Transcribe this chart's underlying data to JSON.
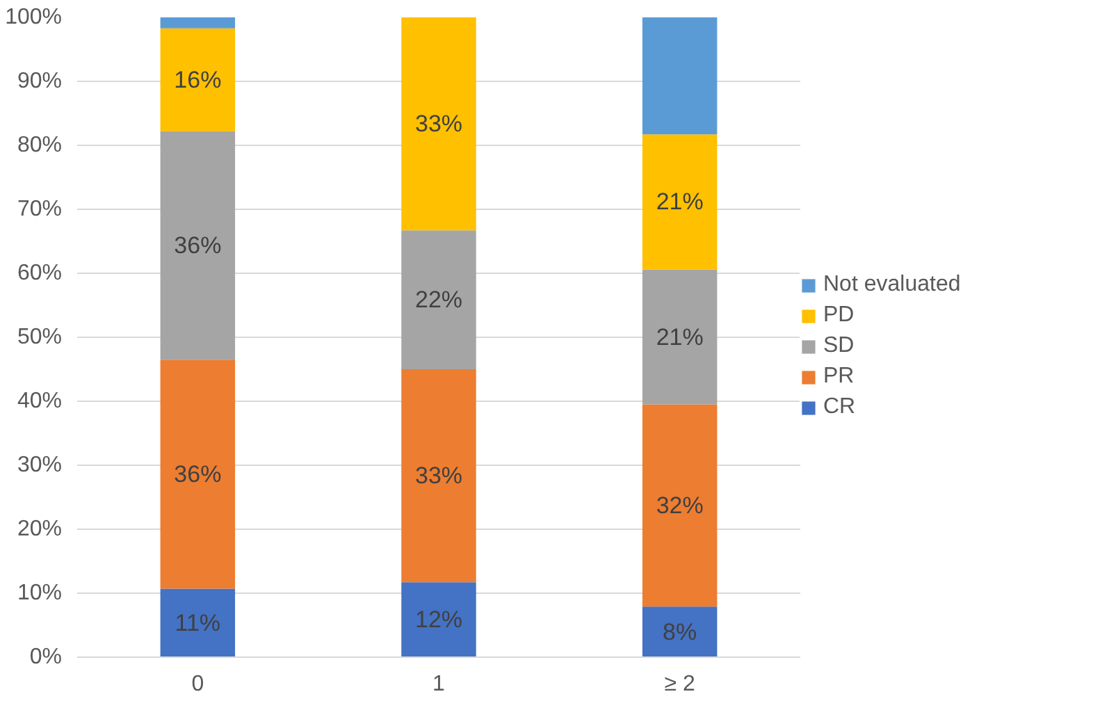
{
  "chart_data": {
    "type": "bar",
    "stacked": true,
    "categories": [
      "0",
      "1",
      "≥ 2"
    ],
    "series": [
      {
        "name": "CR",
        "color": "#4472c4",
        "values": [
          10.7,
          11.7,
          7.9
        ],
        "value_labels": [
          "11%",
          "12%",
          "8%"
        ]
      },
      {
        "name": "PR",
        "color": "#ed7d31",
        "values": [
          35.8,
          33.3,
          31.6
        ],
        "value_labels": [
          "36%",
          "33%",
          "32%"
        ]
      },
      {
        "name": "SD",
        "color": "#a5a5a5",
        "values": [
          35.7,
          21.7,
          21.1
        ],
        "value_labels": [
          "36%",
          "22%",
          "21%"
        ]
      },
      {
        "name": "PD",
        "color": "#ffc000",
        "values": [
          16.1,
          33.3,
          21.1
        ],
        "value_labels": [
          "16%",
          "33%",
          "21%"
        ]
      },
      {
        "name": "Not evaluated",
        "color": "#5b9bd5",
        "values": [
          1.7,
          0,
          18.3
        ],
        "value_labels": [
          null,
          null,
          null
        ]
      }
    ],
    "ylim": [
      0,
      100
    ],
    "yticks": [
      {
        "value": 0,
        "label": "0%"
      },
      {
        "value": 10,
        "label": "10%"
      },
      {
        "value": 20,
        "label": "20%"
      },
      {
        "value": 30,
        "label": "30%"
      },
      {
        "value": 40,
        "label": "40%"
      },
      {
        "value": 50,
        "label": "50%"
      },
      {
        "value": 60,
        "label": "60%"
      },
      {
        "value": 70,
        "label": "70%"
      },
      {
        "value": 80,
        "label": "80%"
      },
      {
        "value": 90,
        "label": "90%"
      },
      {
        "value": 100,
        "label": "100%"
      }
    ],
    "grid": "y",
    "legend": "right"
  }
}
